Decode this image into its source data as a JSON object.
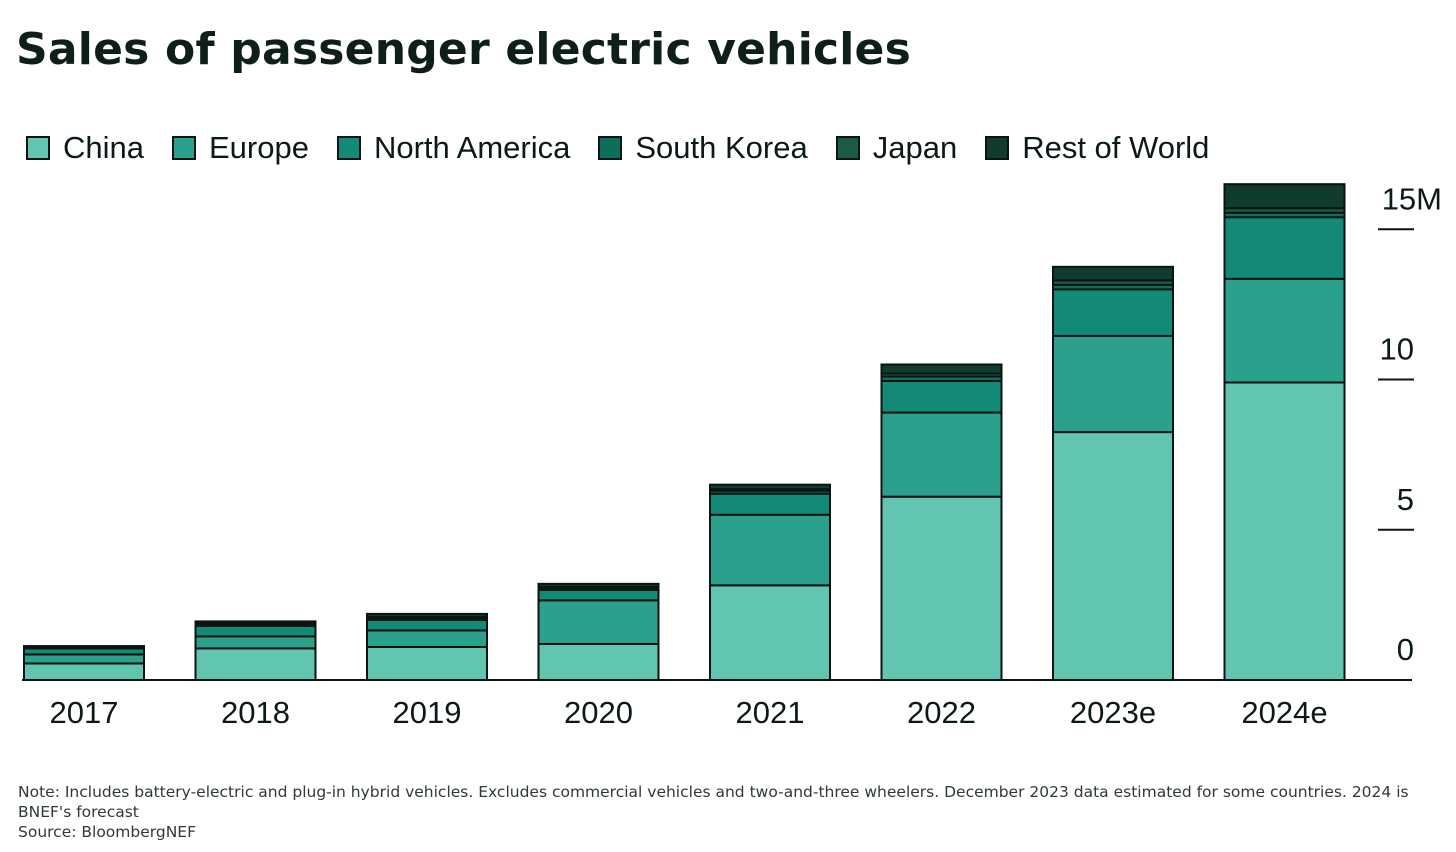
{
  "chart_data": {
    "type": "bar",
    "stacked": true,
    "title": "Sales of passenger electric vehicles",
    "categories": [
      "2017",
      "2018",
      "2019",
      "2020",
      "2021",
      "2022",
      "2023e",
      "2024e"
    ],
    "series": [
      {
        "name": "China",
        "color": "#62c5b2",
        "values": [
          0.55,
          1.05,
          1.1,
          1.2,
          3.15,
          6.1,
          8.25,
          9.9
        ]
      },
      {
        "name": "Europe",
        "color": "#2ba08c",
        "values": [
          0.3,
          0.4,
          0.55,
          1.45,
          2.35,
          2.8,
          3.2,
          3.45
        ]
      },
      {
        "name": "North America",
        "color": "#138a78",
        "values": [
          0.2,
          0.35,
          0.35,
          0.35,
          0.7,
          1.05,
          1.55,
          2.05
        ]
      },
      {
        "name": "South Korea",
        "color": "#0d6e5d",
        "values": [
          0.03,
          0.05,
          0.05,
          0.05,
          0.1,
          0.15,
          0.15,
          0.15
        ]
      },
      {
        "name": "Japan",
        "color": "#1b5b47",
        "values": [
          0.03,
          0.05,
          0.05,
          0.05,
          0.05,
          0.1,
          0.15,
          0.15
        ]
      },
      {
        "name": "Rest of World",
        "color": "#0f3c2e",
        "values": [
          0.02,
          0.05,
          0.1,
          0.1,
          0.15,
          0.3,
          0.45,
          0.8
        ]
      }
    ],
    "y_ticks": [
      "0",
      "5",
      "10",
      "15M"
    ],
    "y_tick_values": [
      0,
      5,
      10,
      15
    ],
    "ylim": [
      0,
      16.5
    ],
    "legend_position": "top-left",
    "y_axis_position": "right",
    "grid": false
  },
  "footer": {
    "note": "Note: Includes battery-electric and plug-in hybrid vehicles. Excludes commercial vehicles and two-and-three wheelers. December 2023 data estimated for some countries. 2024 is BNEF's forecast",
    "source": "Source: BloombergNEF"
  }
}
